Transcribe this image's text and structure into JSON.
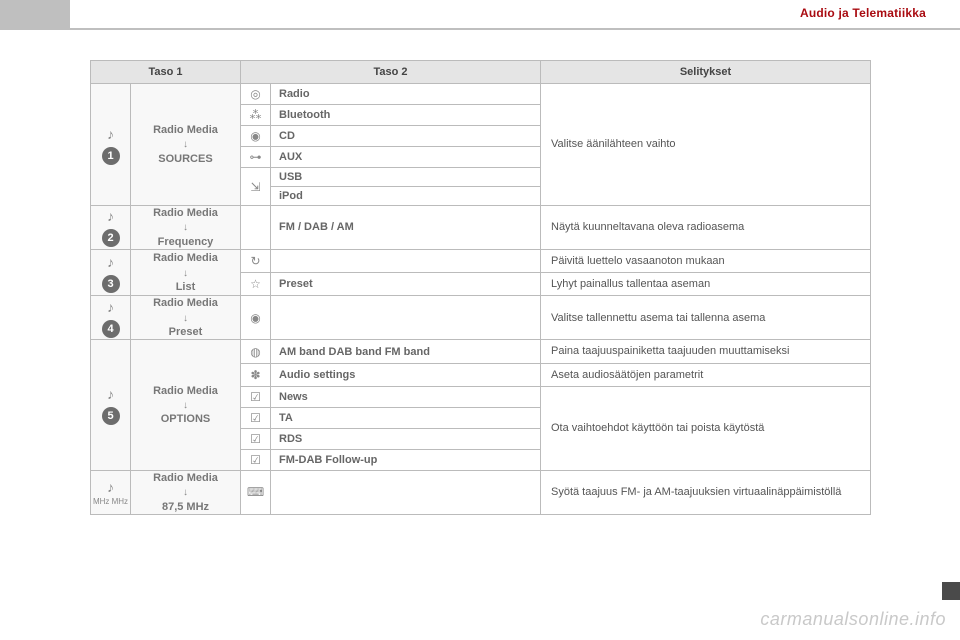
{
  "header": {
    "title": "Audio ja Telematiikka"
  },
  "columns": {
    "level1": "Taso 1",
    "level2": "Taso 2",
    "desc": "Selitykset"
  },
  "groups": [
    {
      "num": "1",
      "icon": "♪",
      "path_top": "Radio Media",
      "path_bottom": "SOURCES",
      "rows": [
        {
          "icon": "◎",
          "label": "Radio"
        },
        {
          "icon": "⁂",
          "label": "Bluetooth"
        },
        {
          "icon": "◉",
          "label": "CD"
        },
        {
          "icon": "⊶",
          "label": "AUX"
        },
        {
          "icon": "⇲",
          "label": "USB"
        },
        {
          "icon": "",
          "label": "iPod"
        }
      ],
      "desc": "Valitse äänilähteen vaihto",
      "usb_rowspan": 2
    },
    {
      "num": "2",
      "icon": "♪",
      "path_top": "Radio Media",
      "path_bottom": "Frequency",
      "rows": [
        {
          "icon": "",
          "label": "FM / DAB / AM"
        }
      ],
      "desc": "Näytä kuunneltavana oleva radioasema"
    },
    {
      "num": "3",
      "icon": "♪",
      "path_top": "Radio Media",
      "path_bottom": "List",
      "rows": [
        {
          "icon": "↻",
          "label": "",
          "desc": "Päivitä luettelo vasaanoton mukaan"
        },
        {
          "icon": "☆",
          "label": "Preset",
          "desc": "Lyhyt painallus tallentaa aseman"
        }
      ]
    },
    {
      "num": "4",
      "icon": "♪",
      "path_top": "Radio Media",
      "path_bottom": "Preset",
      "rows": [
        {
          "icon": "◉",
          "label": ""
        }
      ],
      "desc": "Valitse tallennettu asema tai tallenna asema"
    },
    {
      "num": "5",
      "icon": "♪",
      "path_top": "Radio Media",
      "path_bottom": "OPTIONS",
      "rows": [
        {
          "icon": "◍",
          "label": "AM band DAB band FM band",
          "desc": "Paina taajuuspainiketta taajuuden muuttamiseksi"
        },
        {
          "icon": "✽",
          "label": "Audio settings",
          "desc": "Aseta audiosäätöjen parametrit"
        },
        {
          "icon": "☑",
          "label": "News"
        },
        {
          "icon": "☑",
          "label": "TA"
        },
        {
          "icon": "☑",
          "label": "RDS"
        },
        {
          "icon": "☑",
          "label": "FM-DAB Follow-up"
        }
      ],
      "group_desc": "Ota vaihtoehdot käyttöön tai poista käytöstä"
    },
    {
      "num": "",
      "sub": "MHz\nMHz",
      "icon": "♪",
      "path_top": "Radio Media",
      "path_bottom": "87,5 MHz",
      "rows": [
        {
          "icon": "⌨",
          "label": ""
        }
      ],
      "desc": "Syötä taajuus FM- ja AM-taajuuksien virtuaalinäppäimistöllä"
    }
  ],
  "watermark": "carmanualsonline.info"
}
